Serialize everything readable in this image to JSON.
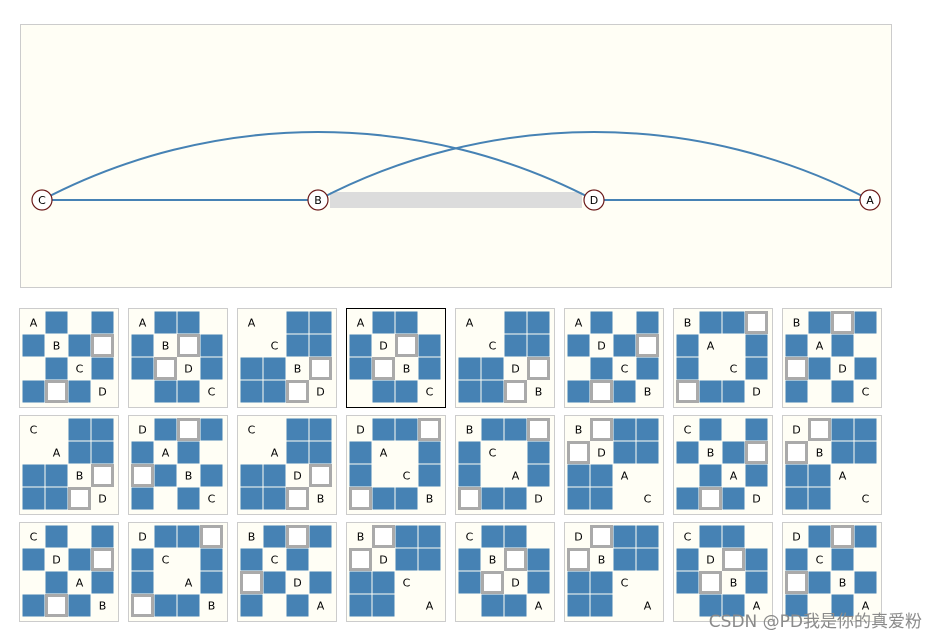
{
  "graph": {
    "nodes": [
      "C",
      "B",
      "D",
      "A"
    ],
    "edges": [
      [
        "C",
        "B"
      ],
      [
        "B",
        "D"
      ],
      [
        "D",
        "A"
      ],
      [
        "C",
        "D"
      ],
      [
        "B",
        "A"
      ]
    ],
    "highlighted_edge": 1
  },
  "matrices": [
    {
      "order": [
        "A",
        "B",
        "C",
        "D"
      ]
    },
    {
      "order": [
        "A",
        "B",
        "D",
        "C"
      ]
    },
    {
      "order": [
        "A",
        "C",
        "B",
        "D"
      ]
    },
    {
      "order": [
        "A",
        "D",
        "B",
        "C"
      ]
    },
    {
      "order": [
        "A",
        "C",
        "D",
        "B"
      ]
    },
    {
      "order": [
        "A",
        "D",
        "C",
        "B"
      ]
    },
    {
      "order": [
        "B",
        "A",
        "C",
        "D"
      ]
    },
    {
      "order": [
        "B",
        "A",
        "D",
        "C"
      ]
    },
    {
      "order": [
        "C",
        "A",
        "B",
        "D"
      ]
    },
    {
      "order": [
        "D",
        "A",
        "B",
        "C"
      ]
    },
    {
      "order": [
        "C",
        "A",
        "D",
        "B"
      ]
    },
    {
      "order": [
        "D",
        "A",
        "C",
        "B"
      ]
    },
    {
      "order": [
        "B",
        "C",
        "A",
        "D"
      ]
    },
    {
      "order": [
        "B",
        "D",
        "A",
        "C"
      ]
    },
    {
      "order": [
        "C",
        "B",
        "A",
        "D"
      ]
    },
    {
      "order": [
        "D",
        "B",
        "A",
        "C"
      ]
    },
    {
      "order": [
        "C",
        "D",
        "A",
        "B"
      ]
    },
    {
      "order": [
        "D",
        "C",
        "A",
        "B"
      ]
    },
    {
      "order": [
        "B",
        "C",
        "D",
        "A"
      ]
    },
    {
      "order": [
        "B",
        "D",
        "C",
        "A"
      ]
    },
    {
      "order": [
        "C",
        "B",
        "D",
        "A"
      ]
    },
    {
      "order": [
        "D",
        "B",
        "C",
        "A"
      ]
    },
    {
      "order": [
        "C",
        "D",
        "B",
        "A"
      ]
    },
    {
      "order": [
        "D",
        "C",
        "B",
        "A"
      ]
    }
  ],
  "selected_matrix": 3,
  "watermark": "CSDN @PD我是你的真爱粉"
}
